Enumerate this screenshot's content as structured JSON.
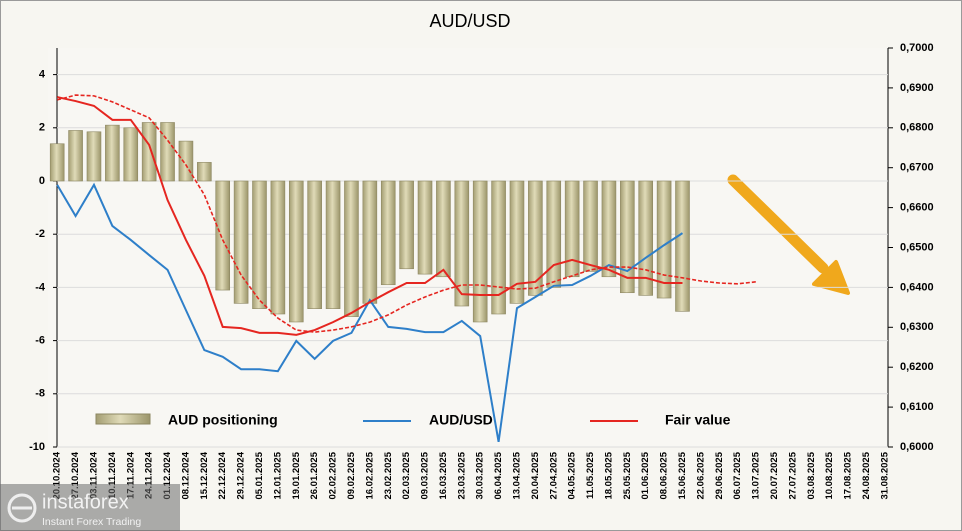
{
  "chart_data": {
    "type": "combo",
    "title": "AUD/USD",
    "categories": [
      "20.10.2024",
      "27.10.2024",
      "03.11.2024",
      "10.11.2024",
      "17.11.2024",
      "24.11.2024",
      "01.12.2024",
      "08.12.2024",
      "15.12.2024",
      "22.12.2024",
      "29.12.2024",
      "05.01.2025",
      "12.01.2025",
      "19.01.2025",
      "26.01.2025",
      "02.02.2025",
      "09.02.2025",
      "16.02.2025",
      "23.02.2025",
      "02.03.2025",
      "09.03.2025",
      "16.03.2025",
      "23.03.2025",
      "30.03.2025",
      "06.04.2025",
      "13.04.2025",
      "20.04.2025",
      "27.04.2025",
      "04.05.2025",
      "11.05.2025",
      "18.05.2025",
      "25.05.2025",
      "01.06.2025",
      "08.06.2025",
      "15.06.2025",
      "22.06.2025",
      "29.06.2025",
      "06.07.2025",
      "13.07.2025",
      "20.07.2025",
      "27.07.2025",
      "03.08.2025",
      "10.08.2025",
      "17.08.2025",
      "24.08.2025",
      "31.08.2025"
    ],
    "series": [
      {
        "name": "AUD positioning",
        "type": "bar",
        "color": "#c9c39c",
        "values": [
          1.4,
          1.9,
          1.85,
          2.1,
          2.0,
          2.2,
          2.2,
          1.5,
          0.7,
          -4.1,
          -4.6,
          -4.8,
          -5.0,
          -5.3,
          -4.8,
          -4.8,
          -5.1,
          -4.6,
          -3.9,
          -3.3,
          -3.5,
          -3.6,
          -4.7,
          -5.3,
          -5.0,
          -4.6,
          -4.3,
          -4.0,
          -3.6,
          -3.4,
          -3.6,
          -4.2,
          -4.3,
          -4.4,
          -4.9,
          null,
          null,
          null,
          null,
          null,
          null,
          null,
          null,
          null,
          null,
          null
        ]
      },
      {
        "name": "AUD/USD",
        "type": "line",
        "axis": "y2",
        "color": "#2e7fc9",
        "values": [
          0.6657,
          0.6579,
          0.6657,
          0.6554,
          0.6519,
          0.6481,
          0.6444,
          0.6343,
          0.6243,
          0.6226,
          0.6195,
          0.6195,
          0.619,
          0.6266,
          0.6221,
          0.6266,
          0.6286,
          0.6368,
          0.6301,
          0.6296,
          0.6288,
          0.6288,
          0.6316,
          0.6278,
          0.6013,
          0.6348,
          0.6376,
          0.6404,
          0.6406,
          0.6429,
          0.6456,
          0.6441,
          0.6474,
          0.6506,
          0.6536,
          null,
          null,
          null,
          null,
          null,
          null,
          null,
          null,
          null,
          null,
          null
        ]
      },
      {
        "name": "Fair value",
        "type": "line",
        "axis": "y2",
        "color": "#e52620",
        "values": [
          0.6877,
          0.6867,
          0.6855,
          0.682,
          0.682,
          0.6757,
          0.6619,
          0.6519,
          0.6429,
          0.6301,
          0.6298,
          0.6286,
          0.6286,
          0.6281,
          0.6293,
          0.6313,
          0.6336,
          0.6363,
          0.6388,
          0.6411,
          0.6411,
          0.6444,
          0.6383,
          0.6381,
          0.6381,
          0.6409,
          0.6414,
          0.6456,
          0.6469,
          0.6456,
          0.6444,
          0.6424,
          0.6424,
          0.6411,
          0.6411,
          null,
          null,
          null,
          null,
          null,
          null,
          null,
          null,
          null,
          null,
          null
        ]
      },
      {
        "type": "line",
        "axis": "y2",
        "color": "#e52620",
        "dashed": true,
        "values": [
          0.687,
          0.6882,
          0.688,
          0.6865,
          0.6845,
          0.6825,
          0.6769,
          0.6707,
          0.6632,
          0.6519,
          0.6431,
          0.6368,
          0.6323,
          0.6293,
          0.6288,
          0.6293,
          0.6301,
          0.6313,
          0.6331,
          0.6356,
          0.6376,
          0.6393,
          0.6406,
          0.6406,
          0.6401,
          0.6396,
          0.6398,
          0.6414,
          0.6429,
          0.6444,
          0.6451,
          0.6451,
          0.6444,
          0.6431,
          0.6424,
          0.6416,
          0.6411,
          0.6409,
          0.6414,
          null,
          null,
          null,
          null,
          null,
          null,
          null
        ]
      }
    ],
    "ylim": [
      -10,
      5
    ],
    "yticks": [
      -10,
      -8,
      -6,
      -4,
      -2,
      0,
      2,
      4
    ],
    "y2lim": [
      0.6,
      0.7
    ],
    "y2ticks": [
      {
        "value": 0.6,
        "label": "0,6000"
      },
      {
        "value": 0.61,
        "label": "0,6100"
      },
      {
        "value": 0.62,
        "label": "0,6200"
      },
      {
        "value": 0.63,
        "label": "0,6300"
      },
      {
        "value": 0.64,
        "label": "0,6400"
      },
      {
        "value": 0.65,
        "label": "0,6500"
      },
      {
        "value": 0.66,
        "label": "0,6600"
      },
      {
        "value": 0.67,
        "label": "0,6700"
      },
      {
        "value": 0.68,
        "label": "0,6800"
      },
      {
        "value": 0.69,
        "label": "0,6900"
      },
      {
        "value": 0.7,
        "label": "0,7000"
      }
    ],
    "grid": true,
    "legend": "bottom"
  },
  "watermark": {
    "brand": "instaforex",
    "tagline": "Instant Forex Trading"
  }
}
